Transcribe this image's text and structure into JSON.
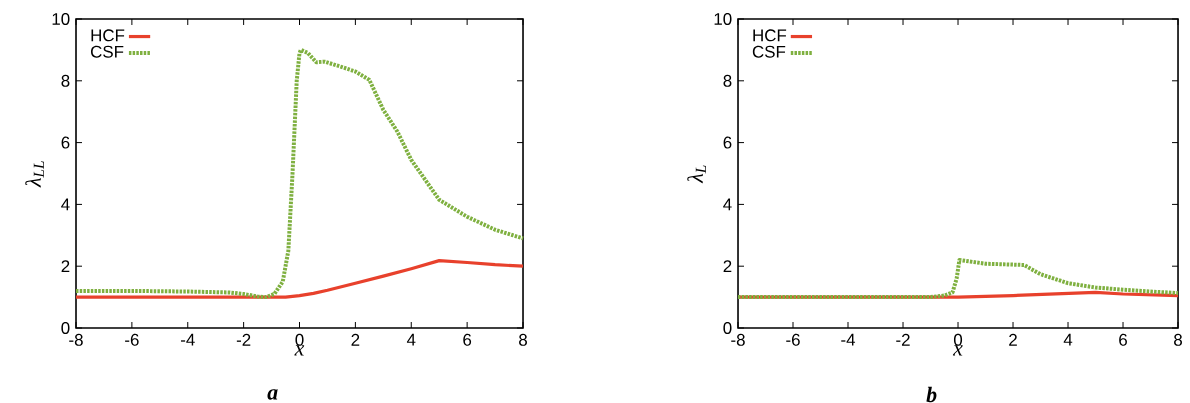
{
  "chart_data": [
    {
      "type": "line",
      "xlabel": "x",
      "ylabel": "λ$_{LL}$",
      "annotations": [
        "a"
      ],
      "xlim": [
        -8,
        8
      ],
      "ylim": [
        0,
        10
      ],
      "xticks": [
        -8,
        -6,
        -4,
        -2,
        0,
        2,
        4,
        6,
        8
      ],
      "yticks": [
        0,
        2,
        4,
        6,
        8,
        10
      ],
      "legend": "top left",
      "grid": false,
      "series": [
        {
          "name": "HCF",
          "color": "#e8412c",
          "line_style": "solid",
          "x": [
            -8,
            -6,
            -4,
            -2,
            -1,
            -0.5,
            0,
            0.5,
            1,
            2,
            3,
            4,
            5,
            6,
            7,
            8
          ],
          "values": [
            1.0,
            1.0,
            1.0,
            1.0,
            1.0,
            1.0,
            1.05,
            1.12,
            1.22,
            1.45,
            1.68,
            1.92,
            2.18,
            2.12,
            2.05,
            2.0
          ]
        },
        {
          "name": "CSF",
          "color": "#7fb040",
          "line_style": "dotted",
          "x": [
            -8,
            -6,
            -4,
            -3,
            -2.5,
            -2,
            -1.5,
            -1.2,
            -0.9,
            -0.6,
            -0.4,
            -0.25,
            -0.1,
            0,
            0.05,
            0.3,
            0.6,
            0.9,
            1.5,
            2,
            2.5,
            3,
            3.5,
            4,
            5,
            6,
            7,
            8
          ],
          "values": [
            1.2,
            1.2,
            1.18,
            1.16,
            1.15,
            1.1,
            1.02,
            1.0,
            1.1,
            1.5,
            2.5,
            5.0,
            8.0,
            8.9,
            9.0,
            8.9,
            8.6,
            8.62,
            8.45,
            8.3,
            8.03,
            7.06,
            6.36,
            5.44,
            4.15,
            3.6,
            3.18,
            2.9
          ]
        }
      ]
    },
    {
      "type": "line",
      "xlabel": "x",
      "ylabel": "λ$_{L}$",
      "annotations": [
        "b"
      ],
      "xlim": [
        -8,
        8
      ],
      "ylim": [
        0,
        10
      ],
      "xticks": [
        -8,
        -6,
        -4,
        -2,
        0,
        2,
        4,
        6,
        8
      ],
      "yticks": [
        0,
        2,
        4,
        6,
        8,
        10
      ],
      "legend": "top left",
      "grid": false,
      "series": [
        {
          "name": "HCF",
          "color": "#e8412c",
          "line_style": "solid",
          "x": [
            -8,
            -4,
            0,
            2,
            5,
            6,
            8
          ],
          "values": [
            1.0,
            1.0,
            1.0,
            1.05,
            1.15,
            1.1,
            1.05
          ]
        },
        {
          "name": "CSF",
          "color": "#7fb040",
          "line_style": "dotted",
          "x": [
            -8,
            -4,
            -1,
            -0.5,
            -0.2,
            -0.05,
            0.05,
            1,
            2.4,
            3,
            4,
            5,
            6,
            7,
            8
          ],
          "values": [
            1.0,
            1.0,
            1.0,
            1.05,
            1.15,
            1.6,
            2.2,
            2.08,
            2.04,
            1.74,
            1.45,
            1.31,
            1.24,
            1.18,
            1.13
          ]
        }
      ]
    }
  ]
}
